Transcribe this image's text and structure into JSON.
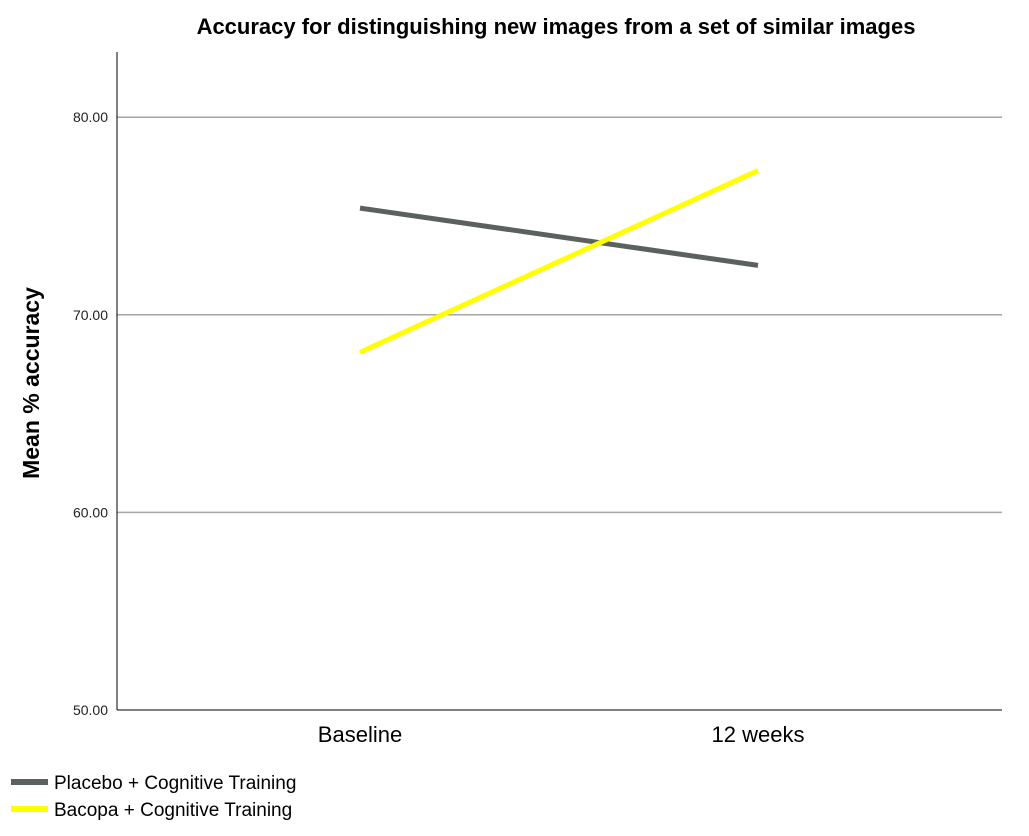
{
  "chart_data": {
    "type": "line",
    "title": "Accuracy for distinguishing new images from a set of similar images",
    "xlabel": "",
    "ylabel": "Mean % accuracy",
    "categories": [
      "Baseline",
      "12 weeks"
    ],
    "ylim": [
      50,
      83.3
    ],
    "yticks": [
      "50.00",
      "60.00",
      "70.00",
      "80.00"
    ],
    "ytick_values": [
      50,
      60,
      70,
      80
    ],
    "grid": true,
    "legend_position": "bottom-left",
    "series": [
      {
        "name": "Placebo + Cognitive Training",
        "values": [
          75.4,
          72.5
        ],
        "color": "#5a615e"
      },
      {
        "name": "Bacopa + Cognitive Training",
        "values": [
          68.1,
          77.3
        ],
        "color": "#ffff00"
      }
    ]
  }
}
